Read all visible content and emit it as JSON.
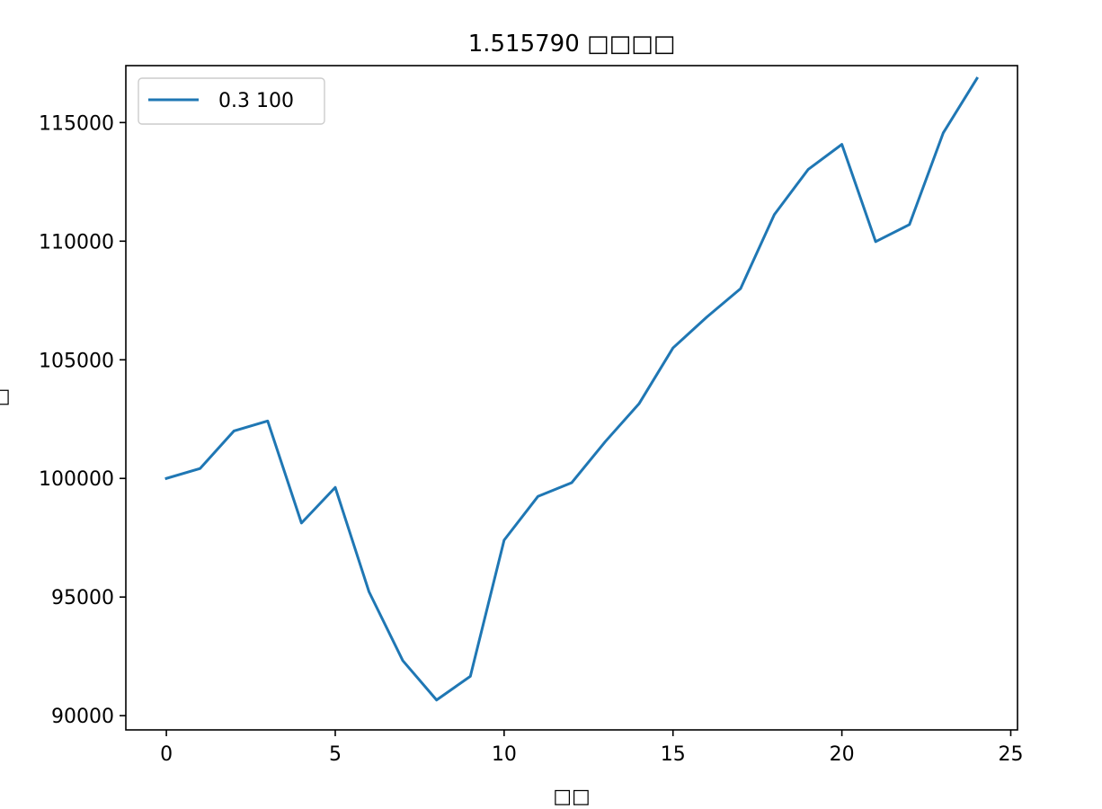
{
  "chart_data": {
    "type": "line",
    "title": "1.515790 □□□□",
    "xlabel": "□□",
    "ylabel": "□",
    "xlim": [
      -1.2,
      25.2
    ],
    "ylim": [
      89400,
      117400
    ],
    "x_ticks": [
      0,
      5,
      10,
      15,
      20,
      25
    ],
    "y_ticks": [
      90000,
      95000,
      100000,
      105000,
      110000,
      115000
    ],
    "grid": false,
    "legend_position": "top-left",
    "series": [
      {
        "name": "0.3 100",
        "color": "#1f77b4",
        "x": [
          0,
          1,
          2,
          3,
          4,
          5,
          6,
          7,
          8,
          9,
          10,
          11,
          12,
          13,
          14,
          15,
          16,
          17,
          18,
          19,
          20,
          21,
          22,
          23,
          24
        ],
        "values": [
          100000,
          100420,
          102000,
          102420,
          98120,
          99620,
          95220,
          92320,
          90660,
          91660,
          97400,
          99240,
          99820,
          101560,
          103160,
          105500,
          106800,
          108000,
          111120,
          113020,
          114080,
          109980,
          110700,
          114560,
          116860
        ]
      }
    ]
  }
}
